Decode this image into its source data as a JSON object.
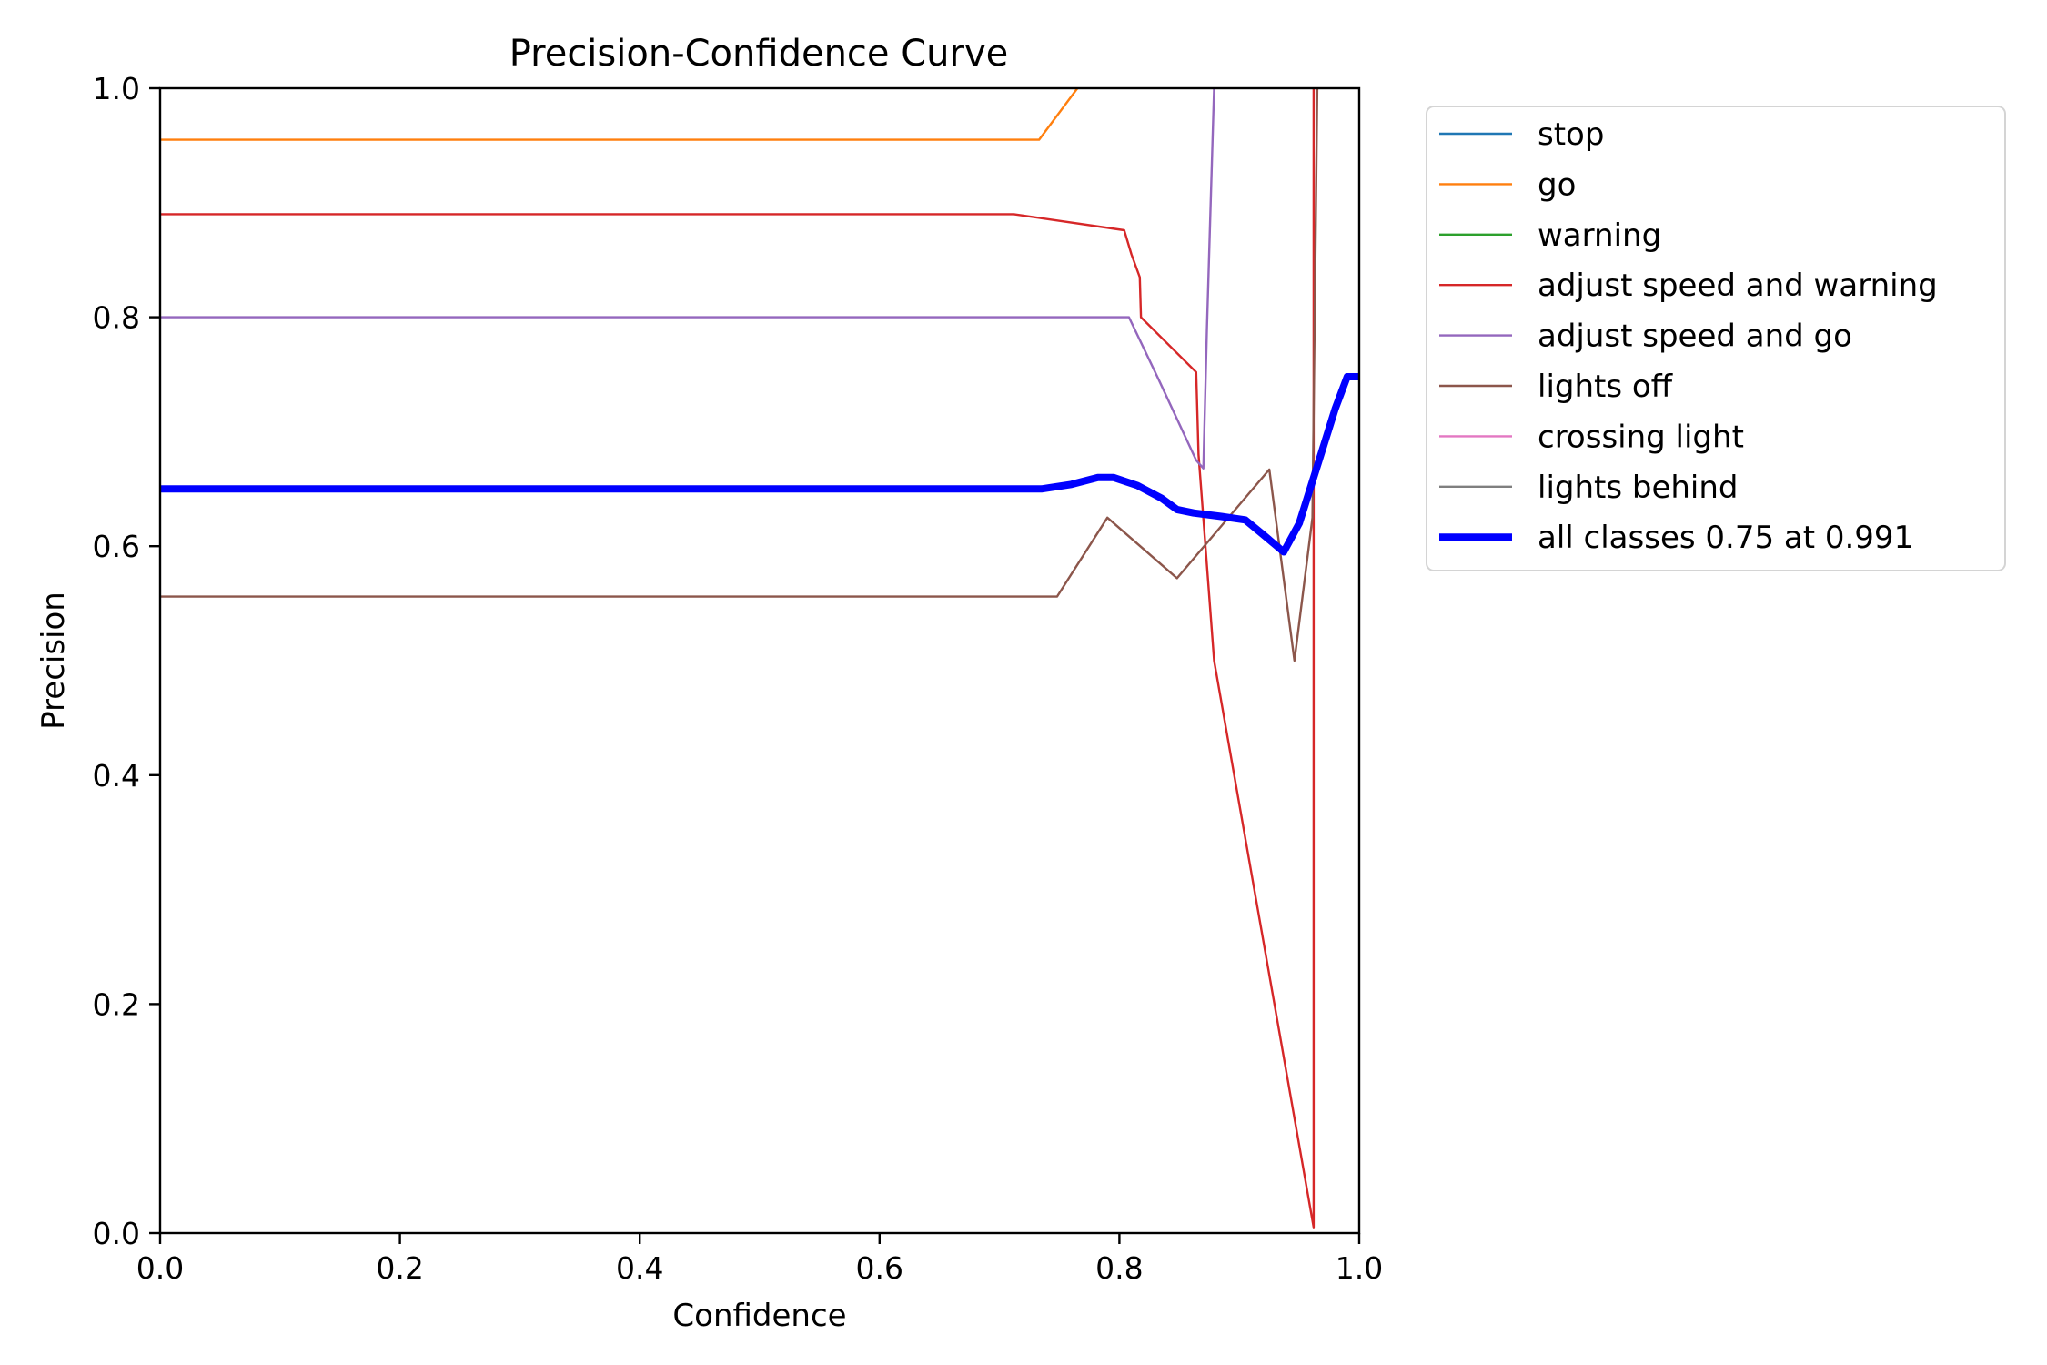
{
  "chart_data": {
    "type": "line",
    "title": "Precision-Confidence Curve",
    "xlabel": "Confidence",
    "ylabel": "Precision",
    "xlim": [
      0,
      1
    ],
    "ylim": [
      0,
      1
    ],
    "xticks": [
      "0.0",
      "0.2",
      "0.4",
      "0.6",
      "0.8",
      "1.0"
    ],
    "yticks": [
      "0.0",
      "0.2",
      "0.4",
      "0.6",
      "0.8",
      "1.0"
    ],
    "grid": false,
    "legend_position": "outside-upper-right",
    "series": [
      {
        "name": "stop",
        "color": "#1f77b4",
        "width": "thin",
        "points": []
      },
      {
        "name": "go",
        "color": "#ff7f0e",
        "width": "thin",
        "points": [
          [
            0,
            0.955
          ],
          [
            0.733,
            0.955
          ],
          [
            0.765,
            1.0
          ]
        ]
      },
      {
        "name": "warning",
        "color": "#2ca02c",
        "width": "thin",
        "points": []
      },
      {
        "name": "adjust speed and warning",
        "color": "#d62728",
        "width": "thin",
        "points": [
          [
            0,
            0.89
          ],
          [
            0.712,
            0.89
          ],
          [
            0.804,
            0.876
          ],
          [
            0.81,
            0.855
          ],
          [
            0.817,
            0.835
          ],
          [
            0.818,
            0.8
          ],
          [
            0.864,
            0.752
          ],
          [
            0.866,
            0.68
          ],
          [
            0.879,
            0.5
          ],
          [
            0.962,
            0.005
          ],
          [
            0.962,
            1.0
          ]
        ]
      },
      {
        "name": "adjust speed and go",
        "color": "#9467bd",
        "width": "thin",
        "points": [
          [
            0,
            0.8
          ],
          [
            0.808,
            0.8
          ],
          [
            0.833,
            0.745
          ],
          [
            0.864,
            0.675
          ],
          [
            0.87,
            0.668
          ],
          [
            0.873,
            0.79
          ],
          [
            0.879,
            1.0
          ]
        ]
      },
      {
        "name": "lights off",
        "color": "#8c564b",
        "width": "thin",
        "points": [
          [
            0,
            0.556
          ],
          [
            0.748,
            0.556
          ],
          [
            0.79,
            0.625
          ],
          [
            0.848,
            0.572
          ],
          [
            0.925,
            0.667
          ],
          [
            0.946,
            0.5
          ],
          [
            0.961,
            0.625
          ],
          [
            0.965,
            1.0
          ]
        ]
      },
      {
        "name": "crossing light",
        "color": "#e377c2",
        "width": "thin",
        "points": []
      },
      {
        "name": "lights behind",
        "color": "#7f7f7f",
        "width": "thin",
        "points": []
      },
      {
        "name": "all classes 0.75 at 0.991",
        "color": "#0000ff",
        "width": "thick",
        "points": [
          [
            0,
            0.65
          ],
          [
            0.735,
            0.65
          ],
          [
            0.76,
            0.654
          ],
          [
            0.782,
            0.66
          ],
          [
            0.795,
            0.66
          ],
          [
            0.815,
            0.653
          ],
          [
            0.835,
            0.642
          ],
          [
            0.848,
            0.632
          ],
          [
            0.862,
            0.629
          ],
          [
            0.885,
            0.626
          ],
          [
            0.905,
            0.623
          ],
          [
            0.92,
            0.61
          ],
          [
            0.937,
            0.595
          ],
          [
            0.95,
            0.62
          ],
          [
            0.965,
            0.67
          ],
          [
            0.98,
            0.72
          ],
          [
            0.99,
            0.748
          ],
          [
            1.0,
            0.748
          ]
        ]
      }
    ]
  }
}
